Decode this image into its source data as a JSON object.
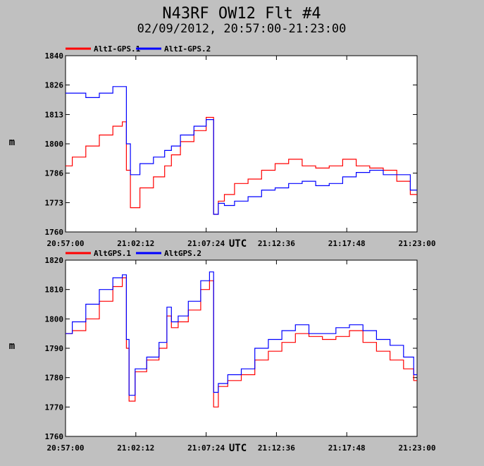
{
  "title": "N43RF OW12 Flt #4",
  "subtitle": "02/09/2012, 20:57:00-21:23:00",
  "chart_data": [
    {
      "type": "line",
      "ylabel": "m",
      "xlabel_mid": "UTC",
      "ylim": [
        1760,
        1840
      ],
      "yticks": [
        "1840",
        "1826",
        "1813",
        "1800",
        "1786",
        "1773",
        "1760"
      ],
      "ytick_values": [
        1840,
        1826.7,
        1813.3,
        1800,
        1786.7,
        1773.3,
        1760
      ],
      "xlim": [
        "20:57:00",
        "21:23:00"
      ],
      "xticks": [
        "20:57:00",
        "21:02:12",
        "21:07:24",
        "21:12:36",
        "21:17:48",
        "21:23:00"
      ],
      "legend_placement": "top-left",
      "x": [
        "20:57:00",
        "20:58:00",
        "20:59:00",
        "21:00:00",
        "21:01:00",
        "21:01:24",
        "21:01:36",
        "21:02:00",
        "21:03:00",
        "21:04:00",
        "21:04:40",
        "21:05:00",
        "21:06:00",
        "21:07:00",
        "21:07:48",
        "21:08:06",
        "21:08:30",
        "21:09:00",
        "21:10:00",
        "21:11:00",
        "21:12:00",
        "21:13:00",
        "21:14:00",
        "21:15:00",
        "21:16:00",
        "21:17:00",
        "21:18:00",
        "21:19:00",
        "21:20:00",
        "21:21:00",
        "21:22:00",
        "21:23:00"
      ],
      "series": [
        {
          "name": "AltI-GPS.1",
          "color": "#ff0000",
          "values": [
            1790,
            1794,
            1799,
            1804,
            1808,
            1810,
            1788,
            1771,
            1780,
            1785,
            1790,
            1795,
            1801,
            1806,
            1812,
            1768,
            1774,
            1777,
            1782,
            1784,
            1788,
            1791,
            1793,
            1790,
            1789,
            1790,
            1793,
            1790,
            1789,
            1788,
            1783,
            1777
          ]
        },
        {
          "name": "AltI-GPS.2",
          "color": "#0000ff",
          "values": [
            1823,
            1823,
            1821,
            1823,
            1826,
            1826,
            1800,
            1786,
            1791,
            1794,
            1797,
            1799,
            1804,
            1808,
            1811,
            1768,
            1773,
            1772,
            1774,
            1776,
            1779,
            1780,
            1782,
            1783,
            1781,
            1782,
            1785,
            1787,
            1788,
            1786,
            1786,
            1779
          ]
        }
      ]
    },
    {
      "type": "line",
      "ylabel": "m",
      "xlabel_mid": "UTC",
      "ylim": [
        1760,
        1820
      ],
      "yticks": [
        "1820",
        "1810",
        "1800",
        "1790",
        "1780",
        "1770",
        "1760"
      ],
      "ytick_values": [
        1820,
        1810,
        1800,
        1790,
        1780,
        1770,
        1760
      ],
      "xlim": [
        "20:57:00",
        "21:23:00"
      ],
      "xticks": [
        "20:57:00",
        "21:02:12",
        "21:07:24",
        "21:12:36",
        "21:17:48",
        "21:23:00"
      ],
      "legend_placement": "top-left",
      "x": [
        "20:57:00",
        "20:58:00",
        "20:59:00",
        "21:00:00",
        "21:01:00",
        "21:01:24",
        "21:01:36",
        "21:01:48",
        "21:02:30",
        "21:03:30",
        "21:04:20",
        "21:04:40",
        "21:05:00",
        "21:05:40",
        "21:06:30",
        "21:07:30",
        "21:07:48",
        "21:08:06",
        "21:08:30",
        "21:09:30",
        "21:10:30",
        "21:11:30",
        "21:12:30",
        "21:13:30",
        "21:14:30",
        "21:15:30",
        "21:16:30",
        "21:17:30",
        "21:18:30",
        "21:19:30",
        "21:20:30",
        "21:21:30",
        "21:22:30",
        "21:23:00"
      ],
      "series": [
        {
          "name": "AltGPS.1",
          "color": "#ff0000",
          "values": [
            1795,
            1796,
            1800,
            1806,
            1811,
            1814,
            1790,
            1772,
            1782,
            1786,
            1790,
            1801,
            1797,
            1799,
            1803,
            1810,
            1813,
            1770,
            1777,
            1779,
            1781,
            1786,
            1789,
            1792,
            1795,
            1794,
            1793,
            1794,
            1796,
            1792,
            1789,
            1786,
            1783,
            1779
          ]
        },
        {
          "name": "AltGPS.2",
          "color": "#0000ff",
          "values": [
            1795,
            1799,
            1805,
            1810,
            1814,
            1815,
            1793,
            1774,
            1783,
            1787,
            1792,
            1804,
            1799,
            1801,
            1806,
            1813,
            1816,
            1775,
            1778,
            1781,
            1783,
            1790,
            1793,
            1796,
            1798,
            1795,
            1795,
            1797,
            1798,
            1796,
            1793,
            1791,
            1787,
            1781
          ]
        }
      ]
    }
  ]
}
